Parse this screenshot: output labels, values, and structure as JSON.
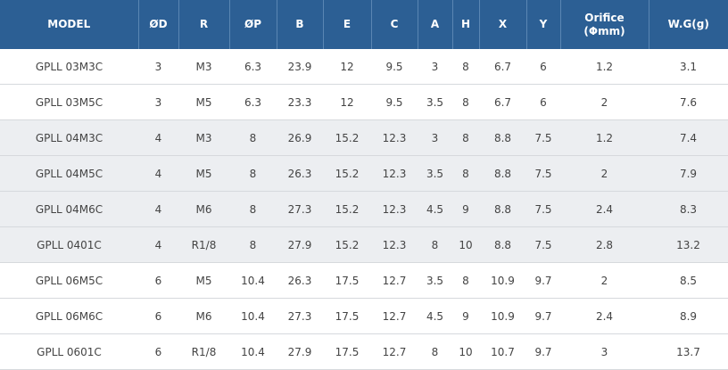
{
  "table": {
    "headers": [
      "MODEL",
      "ØD",
      "R",
      "ØP",
      "B",
      "E",
      "C",
      "A",
      "H",
      "X",
      "Y",
      "Orifice\n(Φmm)",
      "W.G(g)"
    ],
    "rows": [
      [
        "GPLL 03M3C",
        "3",
        "M3",
        "6.3",
        "23.9",
        "12",
        "9.5",
        "3",
        "8",
        "6.7",
        "6",
        "1.2",
        "3.1"
      ],
      [
        "GPLL 03M5C",
        "3",
        "M5",
        "6.3",
        "23.3",
        "12",
        "9.5",
        "3.5",
        "8",
        "6.7",
        "6",
        "2",
        "7.6"
      ],
      [
        "GPLL 04M3C",
        "4",
        "M3",
        "8",
        "26.9",
        "15.2",
        "12.3",
        "3",
        "8",
        "8.8",
        "7.5",
        "1.2",
        "7.4"
      ],
      [
        "GPLL 04M5C",
        "4",
        "M5",
        "8",
        "26.3",
        "15.2",
        "12.3",
        "3.5",
        "8",
        "8.8",
        "7.5",
        "2",
        "7.9"
      ],
      [
        "GPLL 04M6C",
        "4",
        "M6",
        "8",
        "27.3",
        "15.2",
        "12.3",
        "4.5",
        "9",
        "8.8",
        "7.5",
        "2.4",
        "8.3"
      ],
      [
        "GPLL 0401C",
        "4",
        "R1/8",
        "8",
        "27.9",
        "15.2",
        "12.3",
        "8",
        "10",
        "8.8",
        "7.5",
        "2.8",
        "13.2"
      ],
      [
        "GPLL 06M5C",
        "6",
        "M5",
        "10.4",
        "26.3",
        "17.5",
        "12.7",
        "3.5",
        "8",
        "10.9",
        "9.7",
        "2",
        "8.5"
      ],
      [
        "GPLL 06M6C",
        "6",
        "M6",
        "10.4",
        "27.3",
        "17.5",
        "12.7",
        "4.5",
        "9",
        "10.9",
        "9.7",
        "2.4",
        "8.9"
      ],
      [
        "GPLL 0601C",
        "6",
        "R1/8",
        "10.4",
        "27.9",
        "17.5",
        "12.7",
        "8",
        "10",
        "10.7",
        "9.7",
        "3",
        "13.7"
      ]
    ]
  }
}
